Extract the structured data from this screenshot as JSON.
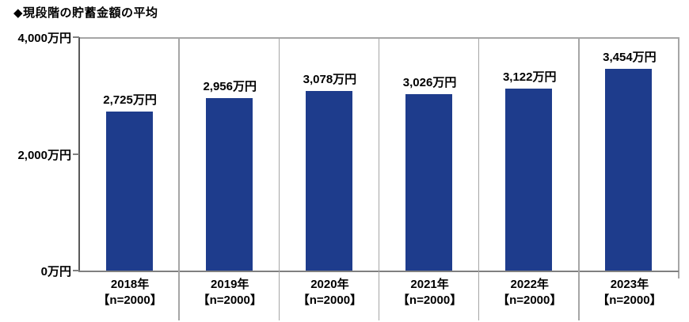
{
  "header": {
    "title": "◆現段階の貯蓄金額の平均"
  },
  "colors": {
    "bar": "#1e3c8c",
    "axis_dark": "#595959",
    "axis_mid": "#808080",
    "grid_light": "#a6a6a6",
    "text": "#000000",
    "background": "#ffffff"
  },
  "chart_data": {
    "type": "bar",
    "title": "◆現段階の貯蓄金額の平均",
    "categories": [
      "2018年",
      "2019年",
      "2020年",
      "2021年",
      "2022年",
      "2023年"
    ],
    "category_sublabels": [
      "【n=2000】",
      "【n=2000】",
      "【n=2000】",
      "【n=2000】",
      "【n=2000】",
      "【n=2000】"
    ],
    "values": [
      2725,
      2956,
      3078,
      3026,
      3122,
      3454
    ],
    "value_labels": [
      "2,725万円",
      "2,956万円",
      "3,078万円",
      "3,026万円",
      "3,122万円",
      "3,454万円"
    ],
    "unit": "万円",
    "y_ticks": [
      {
        "value": 0,
        "label": "0万円"
      },
      {
        "value": 2000,
        "label": "2,000万円"
      },
      {
        "value": 4000,
        "label": "4,000万円"
      }
    ],
    "ylim": [
      0,
      4000
    ],
    "xlabel": "",
    "ylabel": "",
    "grid": false,
    "legend_position": "none"
  }
}
